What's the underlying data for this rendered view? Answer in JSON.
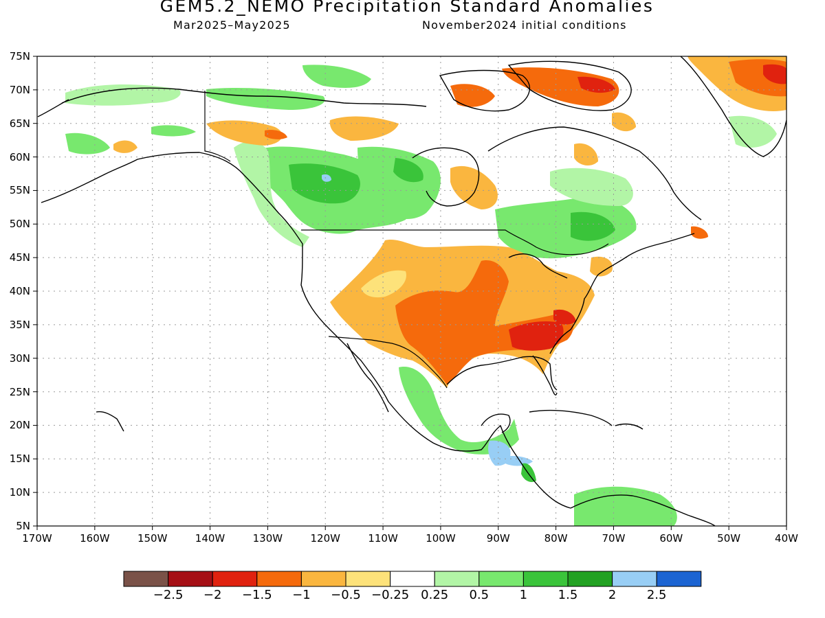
{
  "title": "GEM5.2_NEMO Precipitation Standard Anomalies",
  "subtitle_left": "Mar2025–May2025",
  "subtitle_right": "November2024 initial conditions",
  "lat_labels": [
    "75N",
    "70N",
    "65N",
    "60N",
    "55N",
    "50N",
    "45N",
    "40N",
    "35N",
    "30N",
    "25N",
    "20N",
    "15N",
    "10N",
    "5N"
  ],
  "lon_labels": [
    "170W",
    "160W",
    "150W",
    "140W",
    "130W",
    "120W",
    "110W",
    "100W",
    "90W",
    "80W",
    "70W",
    "60W",
    "50W",
    "40W"
  ],
  "colorbar": {
    "colors": [
      "#7a5248",
      "#a50f15",
      "#e0220f",
      "#f56a0c",
      "#fab63f",
      "#fde27a",
      "#ffffff",
      "#b2f5a6",
      "#78e86e",
      "#3ac43a",
      "#22a122",
      "#98cef5",
      "#1c64d2"
    ],
    "labels": [
      "−2.5",
      "−2",
      "−1.5",
      "−1",
      "−0.5",
      "−0.25",
      "0.25",
      "0.5",
      "1",
      "1.5",
      "2",
      "2.5"
    ]
  },
  "map": {
    "lon_range": [
      -170,
      -40
    ],
    "lat_range": [
      5,
      75
    ],
    "colors": {
      "dry_strong": "#e0220f",
      "dry_mod": "#f56a0c",
      "dry_weak": "#fab63f",
      "dry_light": "#fde27a",
      "wet_light": "#b2f5a6",
      "wet_weak": "#78e86e",
      "wet_mod": "#3ac43a",
      "wet_strong": "#22a122",
      "wet_max": "#98cef5"
    }
  }
}
